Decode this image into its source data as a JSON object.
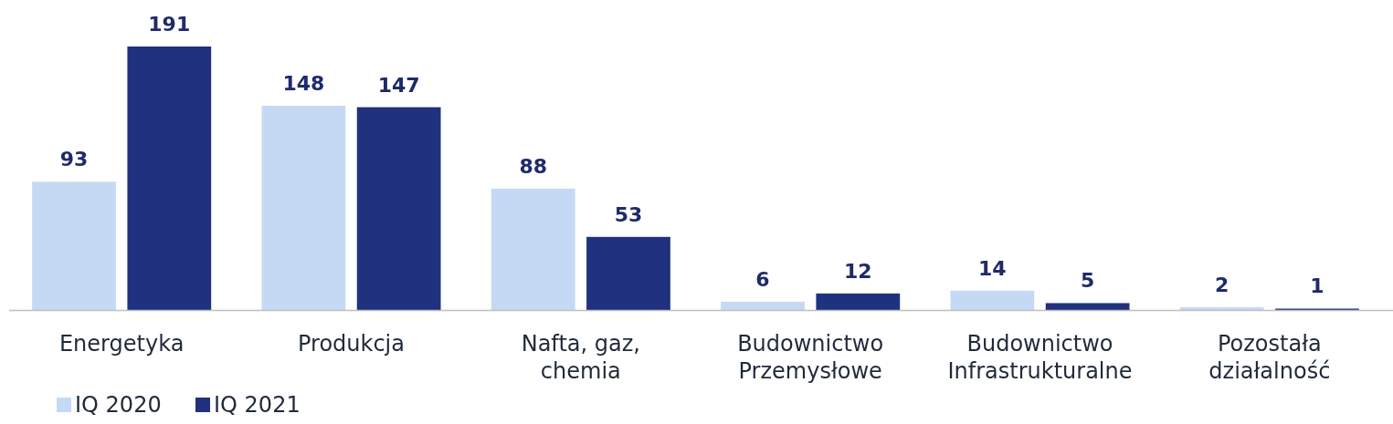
{
  "chart_data": {
    "type": "bar",
    "categories": [
      "Energetyka",
      "Produkcja",
      "Nafta, gaz, chemia",
      "Budownictwo Przemysłowe",
      "Budownictwo Infrastrukturalne",
      "Pozostała działalność"
    ],
    "series": [
      {
        "name": "IQ 2020",
        "color": "#c5d9f5",
        "values": [
          93,
          148,
          88,
          6,
          14,
          2
        ]
      },
      {
        "name": "IQ 2021",
        "color": "#1f317f",
        "values": [
          191,
          147,
          53,
          12,
          5,
          1
        ]
      }
    ],
    "data_labels": true,
    "legend": "bottom left"
  }
}
